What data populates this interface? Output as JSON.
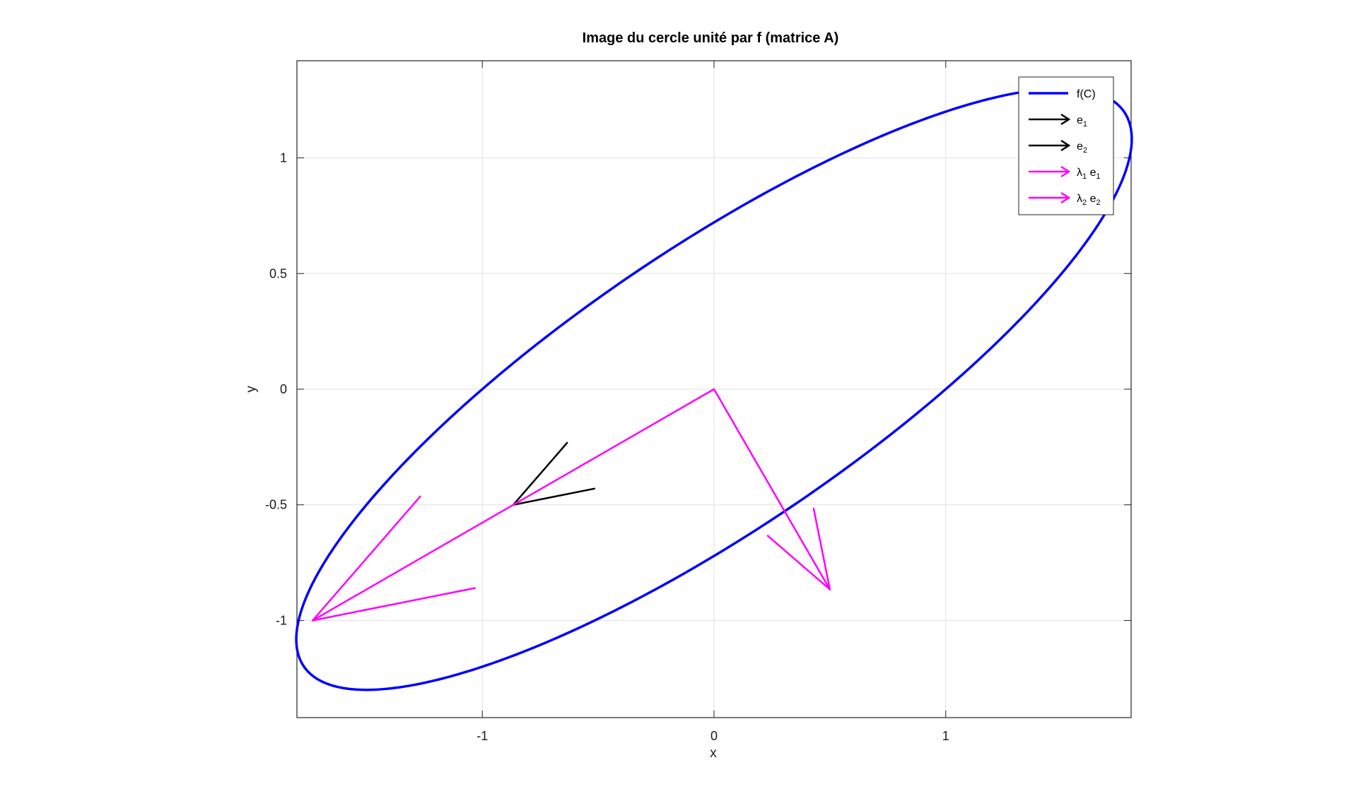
{
  "chart_data": {
    "type": "line",
    "title": "Image du cercle unité par f (matrice A)",
    "xlabel": "x",
    "ylabel": "y",
    "xlim": [
      -1.8,
      1.8
    ],
    "ylim": [
      -1.42,
      1.42
    ],
    "xticks": [
      -1,
      0,
      1
    ],
    "yticks": [
      -1,
      -0.5,
      0,
      0.5,
      1
    ],
    "xtick_labels": [
      "-1",
      "0",
      "1"
    ],
    "ytick_labels": [
      "-1",
      "-0.5",
      "0",
      "0.5",
      "1"
    ],
    "grid": true,
    "legend": {
      "placement": "top-right",
      "entries": [
        {
          "main": "f(C)",
          "sub": "",
          "tail": "",
          "sub2": ""
        },
        {
          "main": "e",
          "sub": "1",
          "tail": "",
          "sub2": ""
        },
        {
          "main": "e",
          "sub": "2",
          "tail": "",
          "sub2": ""
        },
        {
          "main": "λ",
          "sub": "1",
          "tail": " e",
          "sub2": "1"
        },
        {
          "main": "λ",
          "sub": "2",
          "tail": " e",
          "sub2": "2"
        }
      ]
    },
    "ellipse": {
      "name": "f(C)",
      "color": "#0000ff",
      "x_amp": [
        1.0,
        1.5
      ],
      "y_amp": [
        1.2,
        0.5
      ]
    },
    "arrows": [
      {
        "series": "e1",
        "color": "#000000",
        "from": [
          -0.866,
          -0.5
        ],
        "to": [
          -0.634,
          -0.232
        ]
      },
      {
        "series": "e2",
        "color": "#000000",
        "from": [
          -0.866,
          -0.5
        ],
        "to": [
          -0.516,
          -0.43
        ]
      },
      {
        "series": "λ1 e1",
        "color": "#ff00ff",
        "from": [
          0,
          0
        ],
        "to": [
          -1.732,
          -1.0
        ]
      },
      {
        "series": "λ1 e1",
        "color": "#ff00ff",
        "from": [
          -1.732,
          -1.0
        ],
        "to": [
          -1.268,
          -0.464
        ]
      },
      {
        "series": "λ2 e2",
        "color": "#ff00ff",
        "from": [
          -1.732,
          -1.0
        ],
        "to": [
          -1.032,
          -0.86
        ]
      },
      {
        "series": "λ2 e2",
        "color": "#ff00ff",
        "from": [
          0,
          0
        ],
        "to": [
          0.5,
          -0.866
        ]
      },
      {
        "series": "λ2 e2",
        "color": "#ff00ff",
        "from": [
          0.5,
          -0.866
        ],
        "to": [
          0.232,
          -0.634
        ]
      },
      {
        "series": "λ2 e2",
        "color": "#ff00ff",
        "from": [
          0.5,
          -0.866
        ],
        "to": [
          0.43,
          -0.516
        ]
      }
    ],
    "legend_colors": [
      "#0000ff",
      "#000000",
      "#000000",
      "#ff00ff",
      "#ff00ff"
    ]
  }
}
